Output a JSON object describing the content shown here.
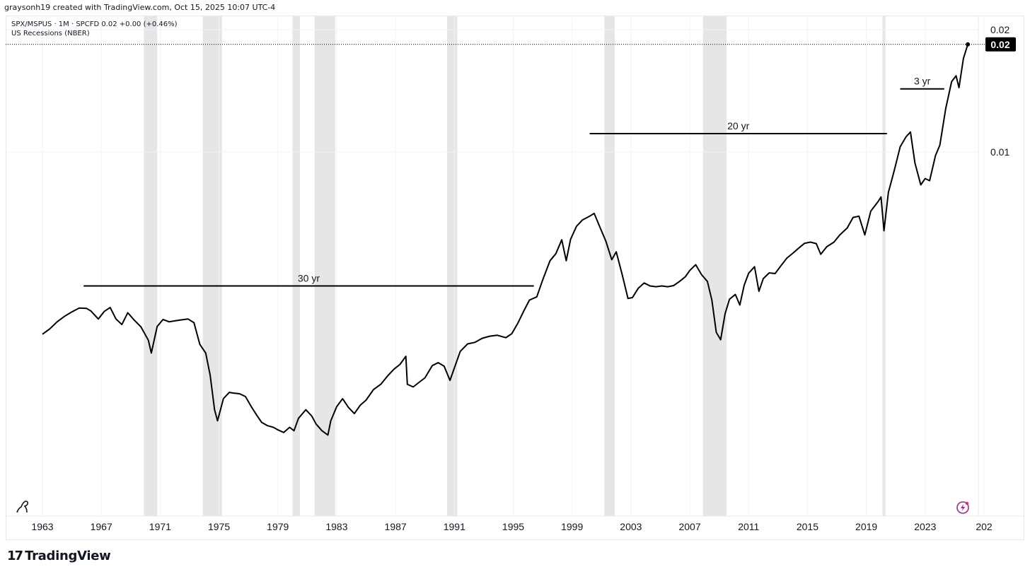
{
  "header": {
    "attribution": "graysonh19 created with TradingView.com, Oct 15, 2025 10:07 UTC-4"
  },
  "legend": {
    "symbol_line": "SPX/MSPUS · 1M · SPCFD  0.02  +0.00 (+0.46%)",
    "recession_line": "US Recessions (NBER)"
  },
  "footer": {
    "brand": "TradingView",
    "logo_glyph": "17"
  },
  "chart_data": {
    "type": "line",
    "scale": "log",
    "x_ticks": [
      "1963",
      "1967",
      "1971",
      "1975",
      "1979",
      "1983",
      "1987",
      "1991",
      "1995",
      "1999",
      "2003",
      "2007",
      "2011",
      "2015",
      "2019",
      "2023",
      "202"
    ],
    "y_ticks": [
      {
        "label": "0.02",
        "value": 0.02
      },
      {
        "label": "0.01",
        "value": 0.01
      }
    ],
    "current_value_label": "0.02",
    "colors": {
      "line": "#000000",
      "recession": "#e6e6e6",
      "badge": "#000000",
      "badge_text": "#ffffff"
    },
    "recessions": [
      [
        1969.9,
        1970.8
      ],
      [
        1973.9,
        1975.2
      ],
      [
        1980.0,
        1980.5
      ],
      [
        1981.5,
        1982.9
      ],
      [
        1990.5,
        1991.2
      ],
      [
        2001.2,
        2001.9
      ],
      [
        2007.9,
        2009.5
      ],
      [
        2020.1,
        2020.3
      ]
    ],
    "annotations": [
      {
        "label": "30 yr",
        "x_start": 1965.8,
        "x_end": 1996.4,
        "y": 0.00468
      },
      {
        "label": "20 yr",
        "x_start": 2000.2,
        "x_end": 2020.4,
        "y": 0.0111
      },
      {
        "label": "3 yr",
        "x_start": 2021.3,
        "x_end": 2024.3,
        "y": 0.0143
      }
    ],
    "series": [
      {
        "points": [
          [
            1963.0,
            0.00356
          ],
          [
            1963.5,
            0.00367
          ],
          [
            1964.0,
            0.00382
          ],
          [
            1964.5,
            0.00394
          ],
          [
            1965.0,
            0.00404
          ],
          [
            1965.5,
            0.00413
          ],
          [
            1966.0,
            0.00412
          ],
          [
            1966.3,
            0.00406
          ],
          [
            1966.8,
            0.00388
          ],
          [
            1967.2,
            0.00405
          ],
          [
            1967.6,
            0.00414
          ],
          [
            1968.0,
            0.00388
          ],
          [
            1968.4,
            0.00376
          ],
          [
            1968.8,
            0.00402
          ],
          [
            1969.2,
            0.00387
          ],
          [
            1969.7,
            0.00371
          ],
          [
            1970.2,
            0.00344
          ],
          [
            1970.4,
            0.0032
          ],
          [
            1970.8,
            0.00372
          ],
          [
            1971.2,
            0.00387
          ],
          [
            1971.6,
            0.00382
          ],
          [
            1972.0,
            0.00384
          ],
          [
            1972.4,
            0.00386
          ],
          [
            1972.9,
            0.00388
          ],
          [
            1973.3,
            0.0038
          ],
          [
            1973.7,
            0.00336
          ],
          [
            1974.1,
            0.0032
          ],
          [
            1974.4,
            0.00282
          ],
          [
            1974.7,
            0.00232
          ],
          [
            1974.9,
            0.00218
          ],
          [
            1975.3,
            0.00247
          ],
          [
            1975.7,
            0.00256
          ],
          [
            1976.0,
            0.00255
          ],
          [
            1976.4,
            0.00254
          ],
          [
            1976.8,
            0.0025
          ],
          [
            1977.2,
            0.00236
          ],
          [
            1977.6,
            0.00224
          ],
          [
            1977.9,
            0.00216
          ],
          [
            1978.3,
            0.00212
          ],
          [
            1978.7,
            0.0021
          ],
          [
            1979.0,
            0.00207
          ],
          [
            1979.4,
            0.00204
          ],
          [
            1979.8,
            0.0021
          ],
          [
            1980.1,
            0.00206
          ],
          [
            1980.4,
            0.00221
          ],
          [
            1980.9,
            0.00232
          ],
          [
            1981.3,
            0.00224
          ],
          [
            1981.6,
            0.00214
          ],
          [
            1982.0,
            0.00206
          ],
          [
            1982.4,
            0.00201
          ],
          [
            1982.6,
            0.00218
          ],
          [
            1983.0,
            0.00236
          ],
          [
            1983.4,
            0.00247
          ],
          [
            1983.8,
            0.00235
          ],
          [
            1984.2,
            0.00227
          ],
          [
            1984.6,
            0.00238
          ],
          [
            1985.0,
            0.00245
          ],
          [
            1985.5,
            0.0026
          ],
          [
            1986.0,
            0.00268
          ],
          [
            1986.5,
            0.00282
          ],
          [
            1986.9,
            0.00292
          ],
          [
            1987.3,
            0.003
          ],
          [
            1987.7,
            0.00314
          ],
          [
            1987.8,
            0.00268
          ],
          [
            1988.2,
            0.00264
          ],
          [
            1988.6,
            0.00271
          ],
          [
            1989.0,
            0.00278
          ],
          [
            1989.5,
            0.00298
          ],
          [
            1989.9,
            0.00303
          ],
          [
            1990.3,
            0.00297
          ],
          [
            1990.7,
            0.00274
          ],
          [
            1991.0,
            0.00294
          ],
          [
            1991.4,
            0.00323
          ],
          [
            1991.9,
            0.00337
          ],
          [
            1992.4,
            0.0034
          ],
          [
            1992.9,
            0.00348
          ],
          [
            1993.4,
            0.00352
          ],
          [
            1993.9,
            0.00354
          ],
          [
            1994.5,
            0.00349
          ],
          [
            1994.9,
            0.00357
          ],
          [
            1995.3,
            0.00378
          ],
          [
            1995.7,
            0.00405
          ],
          [
            1996.1,
            0.00432
          ],
          [
            1996.6,
            0.0044
          ],
          [
            1997.0,
            0.00484
          ],
          [
            1997.5,
            0.0054
          ],
          [
            1997.9,
            0.00562
          ],
          [
            1998.3,
            0.00608
          ],
          [
            1998.6,
            0.0054
          ],
          [
            1998.9,
            0.0061
          ],
          [
            1999.3,
            0.00656
          ],
          [
            1999.7,
            0.0068
          ],
          [
            2000.2,
            0.00695
          ],
          [
            2000.5,
            0.00706
          ],
          [
            2000.9,
            0.00652
          ],
          [
            2001.3,
            0.00603
          ],
          [
            2001.7,
            0.00543
          ],
          [
            2002.0,
            0.00568
          ],
          [
            2002.4,
            0.005
          ],
          [
            2002.8,
            0.00436
          ],
          [
            2003.1,
            0.00438
          ],
          [
            2003.5,
            0.00462
          ],
          [
            2003.9,
            0.00476
          ],
          [
            2004.3,
            0.00468
          ],
          [
            2004.7,
            0.00466
          ],
          [
            2005.1,
            0.00468
          ],
          [
            2005.5,
            0.00466
          ],
          [
            2005.9,
            0.00469
          ],
          [
            2006.3,
            0.0048
          ],
          [
            2006.7,
            0.00493
          ],
          [
            2007.0,
            0.00511
          ],
          [
            2007.4,
            0.00528
          ],
          [
            2007.8,
            0.00499
          ],
          [
            2008.2,
            0.0048
          ],
          [
            2008.5,
            0.00432
          ],
          [
            2008.8,
            0.0036
          ],
          [
            2009.1,
            0.00345
          ],
          [
            2009.4,
            0.004
          ],
          [
            2009.7,
            0.00434
          ],
          [
            2010.1,
            0.00446
          ],
          [
            2010.4,
            0.0042
          ],
          [
            2010.7,
            0.0047
          ],
          [
            2011.0,
            0.00503
          ],
          [
            2011.4,
            0.00522
          ],
          [
            2011.7,
            0.00454
          ],
          [
            2012.0,
            0.00488
          ],
          [
            2012.4,
            0.00504
          ],
          [
            2012.8,
            0.00502
          ],
          [
            2013.2,
            0.00525
          ],
          [
            2013.6,
            0.00548
          ],
          [
            2014.0,
            0.00563
          ],
          [
            2014.4,
            0.0058
          ],
          [
            2014.8,
            0.00596
          ],
          [
            2015.2,
            0.006
          ],
          [
            2015.6,
            0.00595
          ],
          [
            2015.9,
            0.0056
          ],
          [
            2016.3,
            0.00584
          ],
          [
            2016.8,
            0.006
          ],
          [
            2017.2,
            0.00625
          ],
          [
            2017.7,
            0.0065
          ],
          [
            2018.1,
            0.0069
          ],
          [
            2018.5,
            0.00695
          ],
          [
            2018.9,
            0.00625
          ],
          [
            2019.3,
            0.00715
          ],
          [
            2019.8,
            0.00755
          ],
          [
            2020.0,
            0.00775
          ],
          [
            2020.2,
            0.0064
          ],
          [
            2020.5,
            0.00795
          ],
          [
            2020.9,
            0.009
          ],
          [
            2021.3,
            0.0103
          ],
          [
            2021.7,
            0.0109
          ],
          [
            2022.0,
            0.0112
          ],
          [
            2022.3,
            0.0094
          ],
          [
            2022.7,
            0.0083
          ],
          [
            2023.0,
            0.0086
          ],
          [
            2023.3,
            0.0085
          ],
          [
            2023.7,
            0.0098
          ],
          [
            2024.0,
            0.0104
          ],
          [
            2024.4,
            0.0128
          ],
          [
            2024.8,
            0.0149
          ],
          [
            2025.1,
            0.0154
          ],
          [
            2025.3,
            0.0144
          ],
          [
            2025.6,
            0.017
          ],
          [
            2025.9,
            0.0184
          ]
        ]
      }
    ]
  }
}
